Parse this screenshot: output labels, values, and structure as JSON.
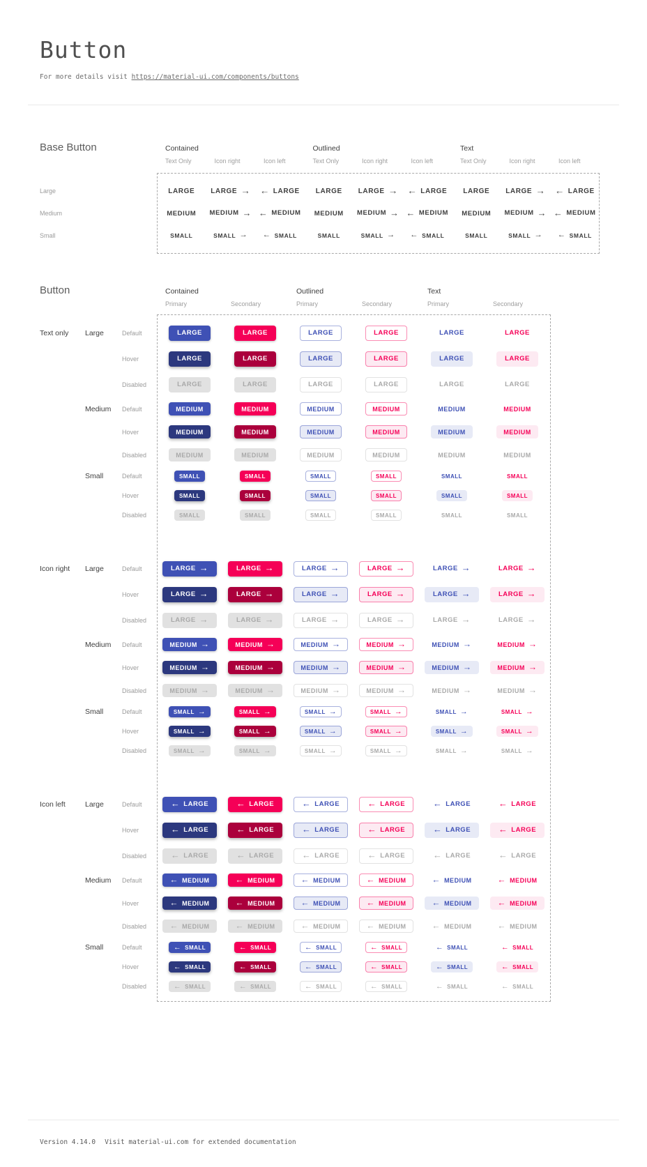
{
  "page": {
    "title": "Button",
    "subtitle_prefix": "For more details visit ",
    "subtitle_link": "https://material-ui.com/components/buttons",
    "footer_version": "Version 4.14.0",
    "footer_note": "Visit material-ui.com for extended documentation"
  },
  "colors": {
    "primary": "#3f51b5",
    "primary_hover": "#2c387e",
    "primary_tint": "#e7eaf6",
    "secondary": "#f50057",
    "secondary_hover": "#ab003c",
    "secondary_tint": "#fdeaf2",
    "disabled_bg": "#e1e1e1",
    "disabled_text": "#a9a9a9",
    "base_text": "#3e3e3e"
  },
  "icons": {
    "arrow_right": "→",
    "arrow_left": "←"
  },
  "base_section": {
    "title": "Base Button",
    "group_headers": [
      {
        "label": "Contained"
      },
      {
        "label": "Outlined"
      },
      {
        "label": "Text"
      }
    ],
    "column_headers": [
      "Text Only",
      "Icon right",
      "Icon left",
      "Text Only",
      "Icon right",
      "Icon left",
      "Text Only",
      "Icon right",
      "Icon left"
    ],
    "column_variants": [
      "text",
      "icon-right",
      "icon-left",
      "text",
      "icon-right",
      "icon-left",
      "text",
      "icon-right",
      "icon-left"
    ],
    "column_groups": [
      "contained",
      "contained",
      "contained",
      "outlined",
      "outlined",
      "outlined",
      "text",
      "text",
      "text"
    ],
    "rows": [
      {
        "label": "Large",
        "text": "LARGE"
      },
      {
        "label": "Medium",
        "text": "MEDIUM"
      },
      {
        "label": "Small",
        "text": "SMALL"
      }
    ]
  },
  "button_section": {
    "title": "Button",
    "group_headers": [
      {
        "label": "Contained"
      },
      {
        "label": "Outlined"
      },
      {
        "label": "Text"
      }
    ],
    "column_headers": [
      "Primary",
      "Secondary",
      "Primary",
      "Secondary",
      "Primary",
      "Secondary"
    ],
    "columns": [
      {
        "variant": "contained",
        "color": "primary"
      },
      {
        "variant": "contained",
        "color": "secondary"
      },
      {
        "variant": "outlined",
        "color": "primary"
      },
      {
        "variant": "outlined",
        "color": "secondary"
      },
      {
        "variant": "text",
        "color": "primary"
      },
      {
        "variant": "text",
        "color": "secondary"
      }
    ],
    "row_groups": [
      {
        "label": "Text only",
        "icon": "none"
      },
      {
        "label": "Icon right",
        "icon": "right"
      },
      {
        "label": "Icon left",
        "icon": "left"
      }
    ],
    "sizes": [
      {
        "label": "Large",
        "text": "LARGE"
      },
      {
        "label": "Medium",
        "text": "MEDIUM"
      },
      {
        "label": "Small",
        "text": "SMALL"
      }
    ],
    "states": [
      {
        "label": "Default",
        "key": "default"
      },
      {
        "label": "Hover",
        "key": "hover"
      },
      {
        "label": "Disabled",
        "key": "disabled"
      }
    ]
  }
}
